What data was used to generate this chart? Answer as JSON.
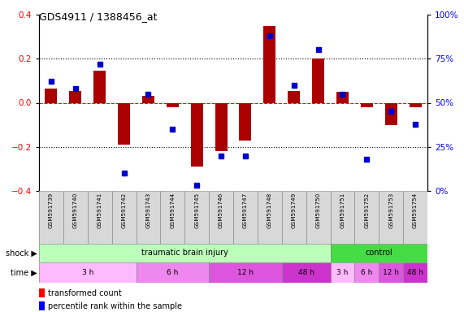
{
  "title": "GDS4911 / 1388456_at",
  "samples": [
    "GSM591739",
    "GSM591740",
    "GSM591741",
    "GSM591742",
    "GSM591743",
    "GSM591744",
    "GSM591745",
    "GSM591746",
    "GSM591747",
    "GSM591748",
    "GSM591749",
    "GSM591750",
    "GSM591751",
    "GSM591752",
    "GSM591753",
    "GSM591754"
  ],
  "bar_values": [
    0.065,
    0.055,
    0.145,
    -0.19,
    0.03,
    -0.02,
    -0.29,
    -0.22,
    -0.17,
    0.35,
    0.055,
    0.2,
    0.05,
    -0.02,
    -0.1,
    -0.02
  ],
  "dot_values": [
    62,
    58,
    72,
    10,
    55,
    35,
    3,
    20,
    20,
    88,
    60,
    80,
    55,
    18,
    45,
    38
  ],
  "bar_color": "#aa0000",
  "dot_color": "#0000cc",
  "ylim_left": [
    -0.4,
    0.4
  ],
  "ylim_right": [
    0,
    100
  ],
  "yticks_left": [
    -0.4,
    -0.2,
    0.0,
    0.2,
    0.4
  ],
  "yticks_right": [
    0,
    25,
    50,
    75,
    100
  ],
  "ytick_labels_right": [
    "0%",
    "25%",
    "50%",
    "75%",
    "100%"
  ],
  "shock_groups": [
    {
      "label": "traumatic brain injury",
      "start": 0,
      "end": 12,
      "color": "#bbffbb"
    },
    {
      "label": "control",
      "start": 12,
      "end": 16,
      "color": "#44dd44"
    }
  ],
  "time_groups": [
    {
      "label": "3 h",
      "start": 0,
      "end": 4,
      "color": "#ffbbff"
    },
    {
      "label": "6 h",
      "start": 4,
      "end": 7,
      "color": "#ee88ee"
    },
    {
      "label": "12 h",
      "start": 7,
      "end": 10,
      "color": "#dd55dd"
    },
    {
      "label": "48 h",
      "start": 10,
      "end": 12,
      "color": "#cc33cc"
    },
    {
      "label": "3 h",
      "start": 12,
      "end": 13,
      "color": "#ffbbff"
    },
    {
      "label": "6 h",
      "start": 13,
      "end": 14,
      "color": "#ee88ee"
    },
    {
      "label": "12 h",
      "start": 14,
      "end": 15,
      "color": "#dd55dd"
    },
    {
      "label": "48 h",
      "start": 15,
      "end": 16,
      "color": "#cc33cc"
    }
  ],
  "legend_bar_label": "transformed count",
  "legend_dot_label": "percentile rank within the sample",
  "background_color": "#ffffff"
}
